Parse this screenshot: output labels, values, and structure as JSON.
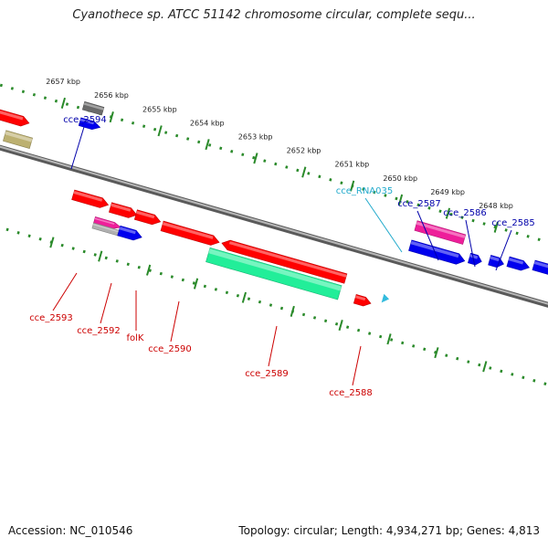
{
  "title": "Cyanothece sp. ATCC 51142 chromosome circular, complete sequ...",
  "footer": {
    "accession": "Accession: NC_010546",
    "topology": "Topology: circular; Length: 4,934,271 bp; Genes: 4,813"
  },
  "colors": {
    "axis": "#8a8a8a",
    "tick": "#2a8a2a",
    "red": "#ff0000",
    "blue": "#0000ee",
    "magenta": "#ee1e9a",
    "green": "#22ee99",
    "gray": "#6a6a6a",
    "khaki": "#bcb070",
    "lightgray": "#b0b0b0",
    "rna": "#33bbdd",
    "label_red": "#cc0000",
    "label_blue": "#0000aa",
    "label_cyan": "#22aacc"
  },
  "kbp_ticks": [
    "2657 kbp",
    "2656 kbp",
    "2655 kbp",
    "2654 kbp",
    "2653 kbp",
    "2652 kbp",
    "2651 kbp",
    "2650 kbp",
    "2649 kbp",
    "2648 kbp"
  ],
  "labels": {
    "top": [
      {
        "text": "cce_2594",
        "color": "blue"
      },
      {
        "text": "cce_RNA035",
        "color": "cyan"
      },
      {
        "text": "cce_2587",
        "color": "blue"
      },
      {
        "text": "cce_2586",
        "color": "blue"
      },
      {
        "text": "cce_2585",
        "color": "blue"
      }
    ],
    "bottom": [
      {
        "text": "cce_2593",
        "color": "red"
      },
      {
        "text": "cce_2592",
        "color": "red"
      },
      {
        "text": "folK",
        "color": "red"
      },
      {
        "text": "cce_2590",
        "color": "red"
      },
      {
        "text": "cce_2589",
        "color": "red"
      },
      {
        "text": "cce_2588",
        "color": "red"
      }
    ]
  }
}
